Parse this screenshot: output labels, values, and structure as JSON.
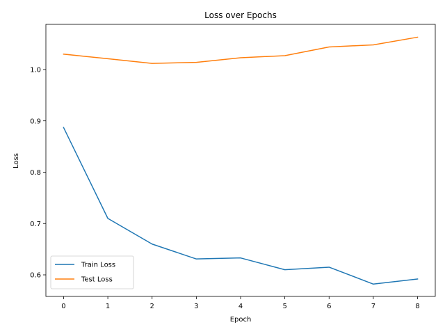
{
  "chart_data": {
    "type": "line",
    "title": "Loss over Epochs",
    "xlabel": "Epoch",
    "ylabel": "Loss",
    "x": [
      0,
      1,
      2,
      3,
      4,
      5,
      6,
      7,
      8
    ],
    "xlim": [
      -0.4,
      8.4
    ],
    "ylim": [
      0.558,
      1.088
    ],
    "xticks": [
      0,
      1,
      2,
      3,
      4,
      5,
      6,
      7,
      8
    ],
    "yticks": [
      0.6,
      0.7,
      0.8,
      0.9,
      1.0
    ],
    "ytick_labels": [
      "0.6",
      "0.7",
      "0.8",
      "0.9",
      "1.0"
    ],
    "grid": false,
    "legend_position": "lower-left",
    "series": [
      {
        "name": "Train Loss",
        "color": "#1f77b4",
        "values": [
          0.887,
          0.71,
          0.66,
          0.631,
          0.633,
          0.61,
          0.615,
          0.582,
          0.592
        ]
      },
      {
        "name": "Test Loss",
        "color": "#ff7f0e",
        "values": [
          1.03,
          1.021,
          1.012,
          1.014,
          1.023,
          1.027,
          1.044,
          1.048,
          1.063
        ]
      }
    ]
  }
}
